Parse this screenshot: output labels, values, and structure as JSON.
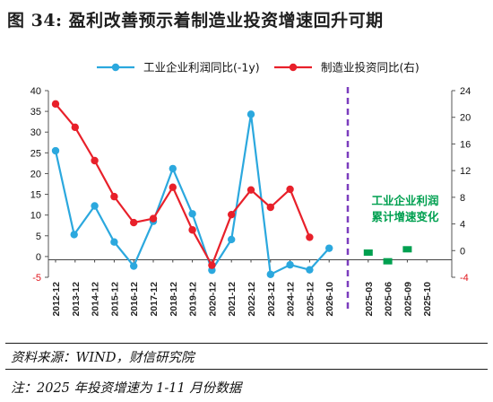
{
  "title": "图 34:  盈利改善预示着制造业投资增速回升可期",
  "source": "资料来源：WIND，财信研究院",
  "note": "注：2025 年投资增速为 1-11 月份数据",
  "chart_data": {
    "type": "line",
    "categories": [
      "2012-12",
      "2013-12",
      "2014-12",
      "2015-12",
      "2016-12",
      "2017-12",
      "2018-12",
      "2019-12",
      "2020-12",
      "2021-12",
      "2022-12",
      "2023-12",
      "2024-12",
      "2025-12",
      "2026-10",
      "",
      "2025-03",
      "2025-06",
      "2025-09",
      "2025-10"
    ],
    "y_left": {
      "ticks": [
        40,
        35,
        30,
        25,
        20,
        15,
        10,
        5,
        0,
        -5
      ],
      "ylim": [
        -5,
        40
      ]
    },
    "y_right": {
      "ticks": [
        24,
        20,
        16,
        12,
        8,
        4,
        0,
        -4
      ],
      "ylim": [
        -4,
        24
      ]
    },
    "legend_position": "top",
    "series": [
      {
        "name": "工业企业利润同比(-1y)",
        "axis": "left",
        "color": "#2BA8DE",
        "x": [
          0,
          0.95,
          2,
          3,
          4,
          5,
          6,
          7,
          8,
          9,
          10,
          11,
          12,
          13,
          14
        ],
        "values": [
          25.5,
          5.3,
          12.2,
          3.5,
          -2.3,
          8.5,
          21.2,
          10.3,
          -3.3,
          4.1,
          34.3,
          -4.3,
          -2.0,
          -3.2,
          2.0
        ]
      },
      {
        "name": "制造业投资同比(右)",
        "axis": "right",
        "color": "#E8202A",
        "x": [
          0,
          1,
          2,
          3,
          4,
          5,
          6,
          7,
          8,
          9,
          10,
          11,
          12,
          13
        ],
        "values": [
          22.0,
          18.5,
          13.5,
          8.1,
          4.2,
          4.8,
          9.5,
          3.1,
          -2.2,
          5.4,
          9.1,
          6.5,
          9.2,
          2.0
        ]
      }
    ],
    "green_points": {
      "color": "#00A050",
      "axis": "right",
      "x": [
        16,
        17,
        18
      ],
      "values": [
        -0.3,
        -1.6,
        0.2
      ]
    },
    "annotation": {
      "lines": [
        "工业企业利润",
        "累计增速变化"
      ],
      "color": "#00A050"
    }
  }
}
